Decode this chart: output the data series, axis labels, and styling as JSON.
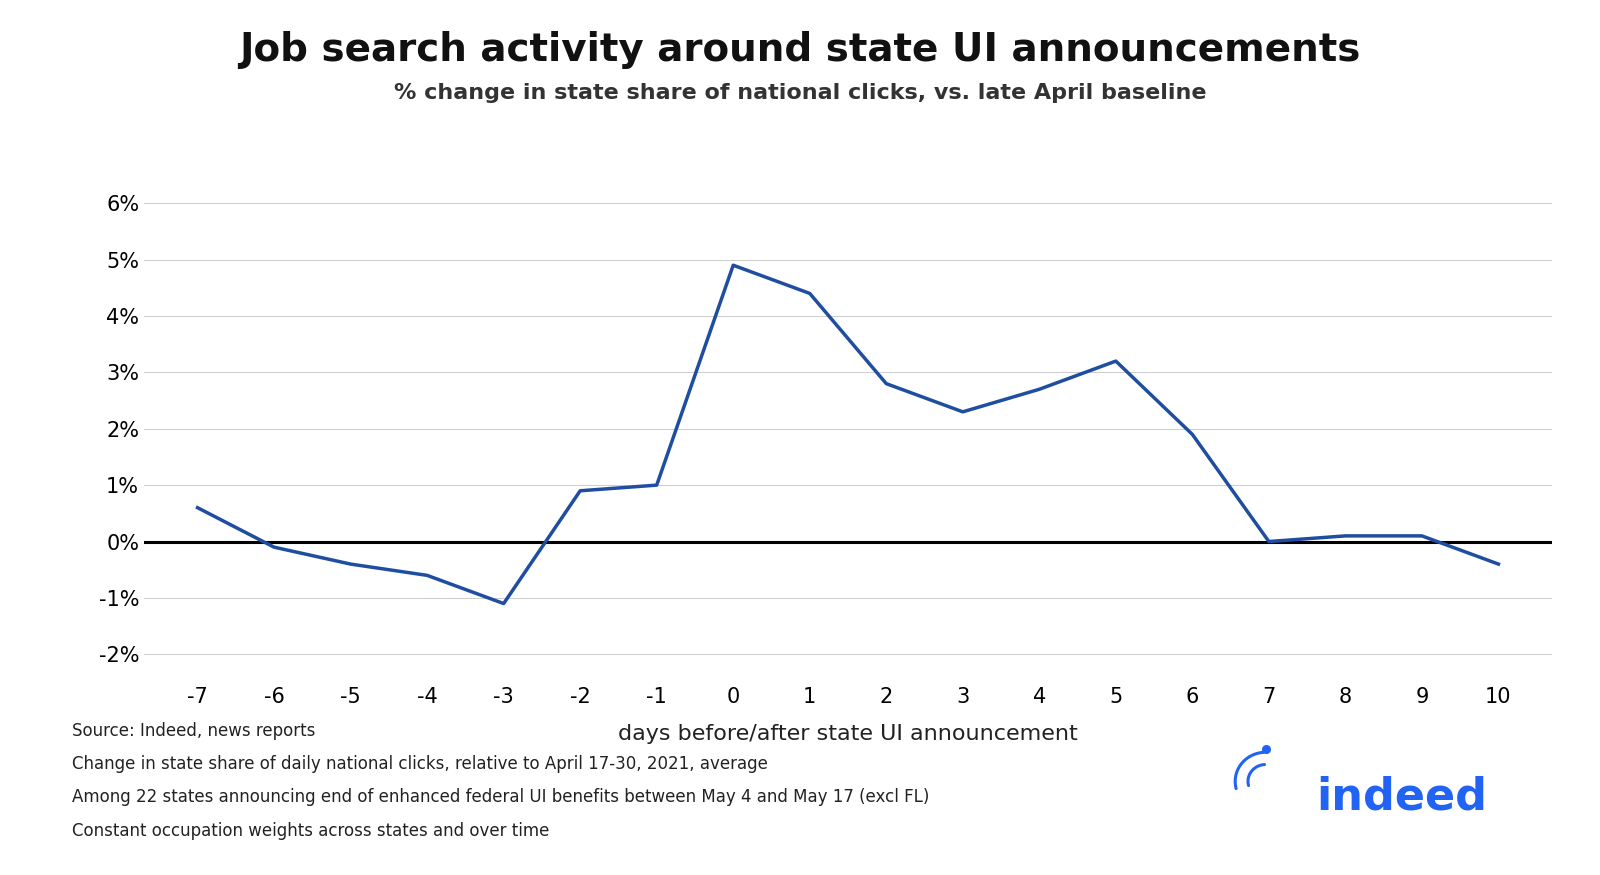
{
  "title": "Job search activity around state UI announcements",
  "subtitle": "% change in state share of national clicks, vs. late April baseline",
  "xlabel": "days before/after state UI announcement",
  "x_values": [
    -7,
    -6,
    -5,
    -4,
    -3,
    -2,
    -1,
    0,
    1,
    2,
    3,
    4,
    5,
    6,
    7,
    8,
    9,
    10
  ],
  "y_values": [
    0.006,
    -0.001,
    -0.004,
    -0.006,
    -0.011,
    0.009,
    0.01,
    0.049,
    0.044,
    0.028,
    0.023,
    0.027,
    0.032,
    0.019,
    0.0,
    0.001,
    0.001,
    -0.004
  ],
  "line_color": "#1f4ea1",
  "zero_line_color": "#000000",
  "background_color": "#ffffff",
  "ylim": [
    -0.025,
    0.065
  ],
  "yticks": [
    -0.02,
    -0.01,
    0.0,
    0.01,
    0.02,
    0.03,
    0.04,
    0.05,
    0.06
  ],
  "title_fontsize": 28,
  "subtitle_fontsize": 16,
  "xlabel_fontsize": 16,
  "tick_fontsize": 15,
  "footnote_lines": [
    "Source: Indeed, news reports",
    "Change in state share of daily national clicks, relative to April 17-30, 2021, average",
    "Among 22 states announcing end of enhanced federal UI benefits between May 4 and May 17 (excl FL)",
    "Constant occupation weights across states and over time"
  ],
  "footnote_fontsize": 12,
  "indeed_color": "#2164f3",
  "line_width": 2.5
}
